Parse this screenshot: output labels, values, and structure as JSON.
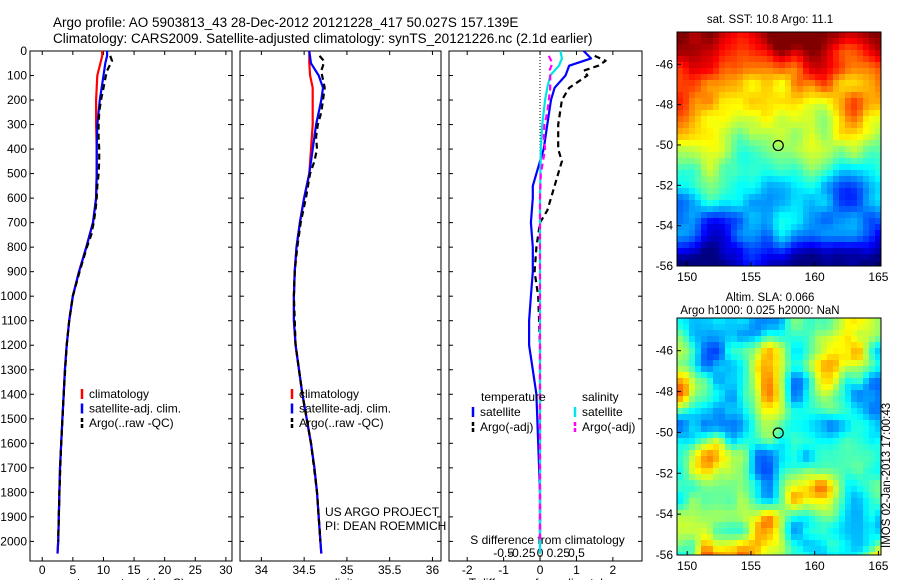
{
  "title_line1": "Argo profile: AO 5903813_43 28-Dec-2012 20121228_417 50.027S 157.139E",
  "title_line2": "Climatology: CARS2009. Satellite-adjusted climatology: synTS_20121226.nc (2.1d earlier)",
  "side_label": "IMOS 02-Jan-2013 17:00:43",
  "colors": {
    "climatology": "#ff0000",
    "satellite": "#0000ff",
    "argo": "#000000",
    "sal_satellite": "#00e5e5",
    "sal_argo": "#ff00ff"
  },
  "chart_data": [
    {
      "type": "line",
      "xlabel": "temperature (deg C)",
      "xlim": [
        -2,
        31
      ],
      "ylim": [
        2080,
        0
      ],
      "xticks": [
        "0",
        "5",
        "10",
        "15",
        "20",
        "25",
        "30"
      ],
      "yticks": [
        "0",
        "100",
        "200",
        "300",
        "400",
        "500",
        "600",
        "700",
        "800",
        "900",
        "1000",
        "1100",
        "1200",
        "1300",
        "1400",
        "1500",
        "1600",
        "1700",
        "1800",
        "1900",
        "2000"
      ],
      "legend": [
        "climatology",
        "satellite-adj. clim.",
        "Argo(..raw -QC)"
      ],
      "legend_placement": "lower-center",
      "series": [
        {
          "name": "climatology",
          "depth": [
            0,
            20,
            50,
            100,
            200,
            300,
            400,
            500,
            600,
            700,
            800,
            900,
            1000,
            1100,
            1200,
            1300,
            1400,
            1500,
            1600,
            1700,
            1800,
            1900,
            2000,
            2050
          ],
          "values": [
            9.8,
            9.8,
            9.5,
            9.0,
            8.8,
            8.8,
            8.9,
            8.9,
            8.8,
            8.3,
            7.2,
            6.0,
            5.0,
            4.4,
            4.0,
            3.7,
            3.5,
            3.3,
            3.1,
            2.9,
            2.8,
            2.7,
            2.6,
            2.5
          ]
        },
        {
          "name": "satellite-adj. clim.",
          "depth": [
            0,
            20,
            50,
            100,
            200,
            300,
            400,
            500,
            600,
            700,
            800,
            900,
            1000,
            1100,
            1200,
            1300,
            1400,
            1500,
            1600,
            1700,
            1800,
            1900,
            2000,
            2050
          ],
          "values": [
            10.6,
            10.6,
            10.3,
            10.0,
            9.4,
            9.0,
            8.9,
            8.9,
            8.8,
            8.3,
            7.2,
            6.0,
            5.0,
            4.4,
            4.0,
            3.7,
            3.5,
            3.3,
            3.1,
            2.9,
            2.8,
            2.7,
            2.6,
            2.5
          ]
        },
        {
          "name": "Argo(..raw -QC)",
          "depth": [
            20,
            40,
            60,
            80,
            100,
            150,
            200,
            250,
            300,
            350,
            400,
            450,
            500,
            550,
            600,
            650,
            700,
            750,
            800,
            900,
            1000,
            1100,
            1200,
            1400,
            1600,
            1800,
            2000
          ],
          "values": [
            11.1,
            11.4,
            11.0,
            10.6,
            10.4,
            10.0,
            9.6,
            9.3,
            9.2,
            9.2,
            9.3,
            9.3,
            9.2,
            9.0,
            8.9,
            8.7,
            8.4,
            8.0,
            7.3,
            6.1,
            5.0,
            4.4,
            4.0,
            3.5,
            3.1,
            2.8,
            2.6
          ]
        }
      ]
    },
    {
      "type": "line",
      "xlabel": "salinity",
      "xlim": [
        33.75,
        36.1
      ],
      "ylim": [
        2080,
        0
      ],
      "xticks": [
        "34",
        "34.5",
        "35",
        "35.5",
        "36"
      ],
      "legend": [
        "climatology",
        "satellite-adj. clim.",
        "Argo(..raw -QC)"
      ],
      "legend_placement": "lower-center",
      "annotation": [
        "US ARGO PROJECT",
        "PI: DEAN ROEMMICH"
      ],
      "series": [
        {
          "name": "climatology",
          "depth": [
            0,
            50,
            100,
            150,
            200,
            300,
            400,
            500,
            600,
            700,
            800,
            900,
            1000,
            1100,
            1200,
            1300,
            1400,
            1500,
            1600,
            1700,
            1800,
            1900,
            2000,
            2050
          ],
          "values": [
            34.56,
            34.56,
            34.57,
            34.6,
            34.6,
            34.6,
            34.58,
            34.56,
            34.5,
            34.45,
            34.41,
            34.39,
            34.38,
            34.38,
            34.4,
            34.44,
            34.48,
            34.53,
            34.58,
            34.62,
            34.65,
            34.67,
            34.69,
            34.7
          ]
        },
        {
          "name": "satellite-adj. clim.",
          "depth": [
            0,
            50,
            100,
            150,
            200,
            300,
            400,
            500,
            600,
            700,
            800,
            900,
            1000,
            1100,
            1200,
            1300,
            1400,
            1500,
            1600,
            1700,
            1800,
            1900,
            2000,
            2050
          ],
          "values": [
            34.56,
            34.58,
            34.67,
            34.72,
            34.7,
            34.64,
            34.6,
            34.56,
            34.5,
            34.45,
            34.41,
            34.39,
            34.38,
            34.38,
            34.4,
            34.44,
            34.48,
            34.53,
            34.58,
            34.62,
            34.65,
            34.67,
            34.69,
            34.7
          ]
        },
        {
          "name": "Argo(..raw -QC)",
          "depth": [
            20,
            40,
            60,
            80,
            100,
            150,
            200,
            250,
            300,
            350,
            400,
            450,
            500,
            600,
            700,
            800,
            900,
            1000,
            1200,
            1400,
            1600,
            1800,
            2000
          ],
          "values": [
            34.68,
            34.73,
            34.72,
            34.7,
            34.71,
            34.74,
            34.72,
            34.7,
            34.66,
            34.64,
            34.65,
            34.62,
            34.57,
            34.52,
            34.46,
            34.42,
            34.39,
            34.38,
            34.4,
            34.48,
            34.58,
            34.65,
            34.69
          ]
        }
      ]
    },
    {
      "type": "line",
      "xlabel": "T difference from climatology",
      "xlabel_top": "S difference from climatology",
      "xlim": [
        -2.5,
        2.8
      ],
      "ylim": [
        2080,
        0
      ],
      "xticks": [
        "-2",
        "-1",
        "0",
        "1",
        "2"
      ],
      "xticks_top": [
        "-0.5",
        "-0.25",
        "0",
        "0.25",
        "0.5"
      ],
      "legend_groups": [
        "temperature",
        "salinity"
      ],
      "legend": [
        "satellite",
        "Argo(-adj)",
        "satellite",
        "Argo(-adj)"
      ],
      "legend_placement": "lower-center",
      "series": [
        {
          "name": "satellite",
          "group": "temperature",
          "depth": [
            0,
            30,
            60,
            100,
            150,
            200,
            300,
            400,
            450,
            500,
            550,
            600,
            700,
            800,
            900,
            1000,
            1100,
            1200,
            1300,
            1400,
            1600,
            1800,
            2000,
            2050
          ],
          "values": [
            1.2,
            1.4,
            0.8,
            0.7,
            0.4,
            0.3,
            0.2,
            0.1,
            0.0,
            -0.1,
            -0.2,
            -0.2,
            -0.25,
            -0.2,
            -0.2,
            -0.25,
            -0.3,
            -0.3,
            -0.2,
            -0.1,
            -0.05,
            0.0,
            0.0,
            0.0
          ]
        },
        {
          "name": "Argo(-adj)",
          "group": "temperature",
          "depth": [
            20,
            40,
            60,
            80,
            100,
            150,
            200,
            300,
            400,
            450,
            500,
            550,
            600,
            650,
            700,
            800,
            900,
            1000,
            1200,
            1400,
            1600,
            1800,
            2000
          ],
          "values": [
            1.5,
            1.8,
            1.6,
            1.2,
            1.3,
            0.8,
            0.6,
            0.5,
            0.5,
            0.6,
            0.5,
            0.4,
            0.3,
            0.2,
            0.0,
            -0.1,
            -0.15,
            -0.05,
            0.0,
            0.0,
            0.0,
            0.0,
            0.0
          ]
        },
        {
          "name": "satellite",
          "group": "salinity",
          "depth": [
            0,
            30,
            60,
            100,
            150,
            200,
            300,
            400,
            600,
            800,
            1000,
            1200,
            1400,
            1600,
            1800,
            2000,
            2050
          ],
          "values": [
            0.28,
            0.3,
            0.26,
            0.14,
            0.1,
            0.07,
            0.03,
            0.01,
            0.0,
            0.0,
            0.0,
            0.0,
            0.0,
            0.0,
            0.0,
            0.0,
            0.0
          ]
        },
        {
          "name": "Argo(-adj)",
          "group": "salinity",
          "depth": [
            20,
            50,
            80,
            100,
            150,
            200,
            250,
            300,
            350,
            400,
            500,
            600,
            700,
            800,
            1000,
            1200,
            1400,
            1600,
            1800,
            2000
          ],
          "values": [
            0.12,
            0.17,
            0.13,
            0.14,
            0.14,
            0.12,
            0.1,
            0.06,
            0.05,
            0.07,
            0.01,
            0.0,
            0.0,
            0.0,
            0.0,
            0.0,
            0.0,
            0.0,
            0.0,
            0.0
          ]
        }
      ]
    },
    {
      "type": "heatmap",
      "title": "sat. SST: 10.8 Argo: 11.1",
      "xlim": [
        149.2,
        165.2
      ],
      "ylim": [
        -56,
        -44.4
      ],
      "xticks": [
        "150",
        "155",
        "160",
        "165"
      ],
      "yticks": [
        "-46",
        "-48",
        "-50",
        "-52",
        "-54",
        "-56"
      ],
      "marker": {
        "lon": 157.139,
        "lat": -50.027
      }
    },
    {
      "type": "heatmap",
      "title": "Altim. SLA: 0.066",
      "subtitle": "Argo h1000: 0.025 h2000: NaN",
      "xlim": [
        149.2,
        165.2
      ],
      "ylim": [
        -56,
        -44.4
      ],
      "xticks": [
        "150",
        "155",
        "160",
        "165"
      ],
      "yticks": [
        "-46",
        "-48",
        "-50",
        "-52",
        "-54",
        "-56"
      ],
      "marker": {
        "lon": 157.139,
        "lat": -50.027
      }
    }
  ]
}
